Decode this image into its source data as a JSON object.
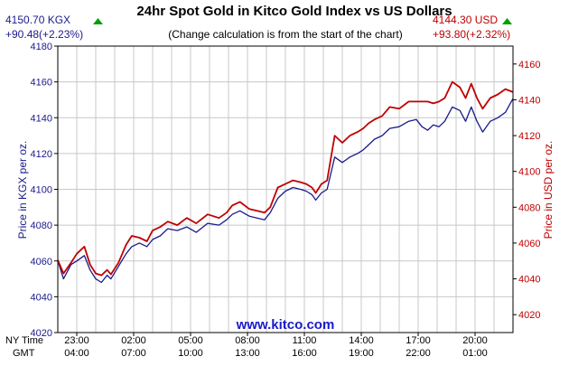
{
  "chart_data": {
    "type": "line",
    "title": "24hr Spot Gold in Kitco Gold Index vs US Dollars",
    "subtitle": "(Change calculation is from the start of the chart)",
    "watermark": "www.kitco.com",
    "left_info": {
      "value": "4150.70 KGX",
      "change": "+90.48(+2.23%)"
    },
    "right_info": {
      "value": "4144.30 USD",
      "change": "+93.80(+2.32%)"
    },
    "ylabel_left": "Price in KGX per oz.",
    "ylabel_right": "Price in USD per oz.",
    "ylim_left": [
      4020,
      4180
    ],
    "ylim_right": [
      4010,
      4170
    ],
    "yticks_left": [
      "4020",
      "4040",
      "4060",
      "4080",
      "4100",
      "4120",
      "4140",
      "4160",
      "4180"
    ],
    "yticks_right": [
      "4020",
      "4040",
      "4060",
      "4080",
      "4100",
      "4120",
      "4140",
      "4160"
    ],
    "x_row_labels": [
      "NY Time",
      "GMT"
    ],
    "x_hours": [
      0,
      3,
      6,
      9,
      12,
      15,
      18,
      21,
      24
    ],
    "xticks_ny": [
      "23:00",
      "02:00",
      "05:00",
      "08:00",
      "11:00",
      "14:00",
      "17:00",
      "20:00"
    ],
    "xticks_gmt": [
      "04:00",
      "07:00",
      "10:00",
      "13:00",
      "16:00",
      "19:00",
      "22:00",
      "01:00"
    ],
    "grid": true,
    "colors": {
      "kgx": "#1a1a8c",
      "usd": "#c00000",
      "up": "#00a000",
      "watermark": "#1a1acc",
      "grid": "#c8c8c8"
    },
    "series": [
      {
        "name": "KGX",
        "axis": "left",
        "x": [
          0.0,
          0.3,
          0.7,
          1.0,
          1.4,
          1.7,
          2.0,
          2.3,
          2.6,
          2.8,
          3.2,
          3.6,
          3.9,
          4.3,
          4.7,
          5.0,
          5.4,
          5.8,
          6.3,
          6.8,
          7.3,
          7.9,
          8.5,
          8.9,
          9.2,
          9.6,
          10.1,
          10.5,
          10.9,
          11.2,
          11.6,
          12.0,
          12.4,
          12.8,
          13.1,
          13.4,
          13.6,
          13.9,
          14.2,
          14.6,
          15.0,
          15.4,
          15.8,
          16.1,
          16.4,
          16.7,
          17.1,
          17.5,
          18.0,
          18.5,
          18.9,
          19.2,
          19.5,
          19.8,
          20.1,
          20.4,
          20.8,
          21.2,
          21.5,
          21.8,
          22.1,
          22.4,
          22.8,
          23.2,
          23.6,
          24.0
        ],
        "y": [
          4060.2,
          4050.0,
          4058.0,
          4060.0,
          4063.0,
          4055.0,
          4050.0,
          4048.0,
          4052.0,
          4050.0,
          4057.0,
          4064.0,
          4068.0,
          4070.0,
          4068.0,
          4072.0,
          4074.0,
          4078.0,
          4077.0,
          4079.0,
          4076.0,
          4081.0,
          4080.0,
          4083.0,
          4086.0,
          4088.0,
          4085.0,
          4084.0,
          4083.0,
          4087.0,
          4095.0,
          4099.0,
          4101.0,
          4100.0,
          4099.0,
          4097.0,
          4094.0,
          4098.0,
          4100.0,
          4118.0,
          4115.0,
          4118.0,
          4120.0,
          4122.0,
          4125.0,
          4128.0,
          4130.0,
          4134.0,
          4135.0,
          4138.0,
          4139.0,
          4135.0,
          4133.0,
          4136.0,
          4135.0,
          4138.0,
          4146.0,
          4144.0,
          4138.0,
          4146.0,
          4138.0,
          4132.0,
          4138.0,
          4140.0,
          4143.0,
          4150.7
        ]
      },
      {
        "name": "USD",
        "axis": "right",
        "x": [
          0.0,
          0.3,
          0.7,
          1.0,
          1.4,
          1.7,
          2.0,
          2.3,
          2.6,
          2.8,
          3.2,
          3.6,
          3.9,
          4.3,
          4.7,
          5.0,
          5.4,
          5.8,
          6.3,
          6.8,
          7.3,
          7.9,
          8.5,
          8.9,
          9.2,
          9.6,
          10.1,
          10.5,
          10.9,
          11.2,
          11.6,
          12.0,
          12.4,
          12.8,
          13.1,
          13.4,
          13.6,
          13.9,
          14.2,
          14.6,
          15.0,
          15.4,
          15.8,
          16.1,
          16.4,
          16.7,
          17.1,
          17.5,
          18.0,
          18.5,
          18.9,
          19.2,
          19.5,
          19.8,
          20.1,
          20.4,
          20.8,
          21.2,
          21.5,
          21.8,
          22.1,
          22.4,
          22.8,
          23.2,
          23.6,
          24.0
        ],
        "y": [
          4050.5,
          4043.0,
          4049.0,
          4054.0,
          4058.0,
          4048.0,
          4043.0,
          4042.0,
          4045.0,
          4042.5,
          4049.0,
          4059.0,
          4064.0,
          4063.0,
          4061.0,
          4067.0,
          4069.0,
          4072.0,
          4070.0,
          4074.0,
          4071.0,
          4076.0,
          4074.0,
          4077.0,
          4081.0,
          4083.0,
          4079.0,
          4078.0,
          4077.0,
          4080.0,
          4091.0,
          4093.0,
          4095.0,
          4094.0,
          4093.0,
          4091.0,
          4088.0,
          4093.0,
          4095.0,
          4120.0,
          4116.0,
          4120.0,
          4122.0,
          4124.0,
          4127.0,
          4129.0,
          4131.0,
          4136.0,
          4135.0,
          4139.0,
          4139.0,
          4139.0,
          4139.0,
          4138.0,
          4139.0,
          4141.0,
          4150.0,
          4147.0,
          4141.0,
          4149.0,
          4141.0,
          4135.0,
          4141.0,
          4143.0,
          4146.0,
          4144.3
        ]
      }
    ]
  }
}
